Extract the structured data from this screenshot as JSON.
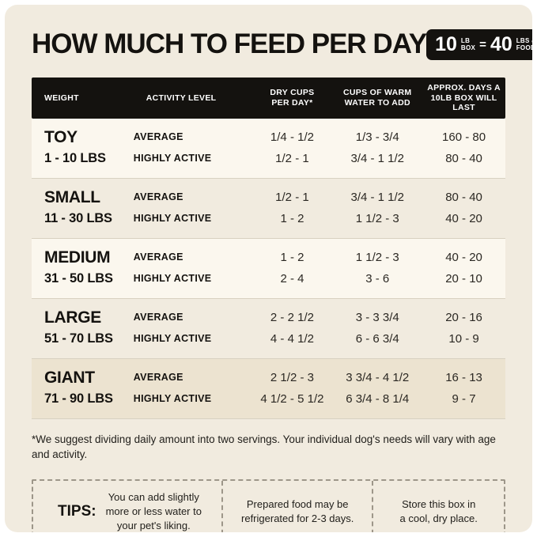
{
  "header": {
    "title": "HOW MUCH TO FEED PER DAY",
    "badge": {
      "num1": "10",
      "unit1_top": "LB",
      "unit1_bottom": "BOX",
      "equals": "=",
      "num2": "40",
      "unit2_top": "LBS",
      "unit2_of": "of",
      "unit2_bottom": "FOOD!"
    }
  },
  "table": {
    "headers": {
      "weight": "WEIGHT",
      "activity": "ACTIVITY LEVEL",
      "dry_cups": "DRY CUPS\nPER DAY*",
      "water": "CUPS OF WARM\nWATER TO ADD",
      "days": "APPROX. DAYS A\n10LB BOX WILL LAST"
    },
    "rows": [
      {
        "weight": "TOY",
        "range": "1 - 10 LBS",
        "lines": [
          {
            "activity": "AVERAGE",
            "dry": "1/4 - 1/2",
            "water": "1/3 - 3/4",
            "days": "160 - 80"
          },
          {
            "activity": "HIGHLY ACTIVE",
            "dry": "1/2 - 1",
            "water": "3/4 - 1 1/2",
            "days": "80 - 40"
          }
        ]
      },
      {
        "weight": "SMALL",
        "range": "11 - 30 LBS",
        "lines": [
          {
            "activity": "AVERAGE",
            "dry": "1/2 - 1",
            "water": "3/4 - 1 1/2",
            "days": "80 - 40"
          },
          {
            "activity": "HIGHLY ACTIVE",
            "dry": "1 - 2",
            "water": "1 1/2 - 3",
            "days": "40 - 20"
          }
        ]
      },
      {
        "weight": "MEDIUM",
        "range": "31 - 50 LBS",
        "lines": [
          {
            "activity": "AVERAGE",
            "dry": "1 - 2",
            "water": "1 1/2 - 3",
            "days": "40 - 20"
          },
          {
            "activity": "HIGHLY ACTIVE",
            "dry": "2 - 4",
            "water": "3 - 6",
            "days": "20 - 10"
          }
        ]
      },
      {
        "weight": "LARGE",
        "range": "51 - 70 LBS",
        "lines": [
          {
            "activity": "AVERAGE",
            "dry": "2 - 2 1/2",
            "water": "3 - 3 3/4",
            "days": "20 - 16"
          },
          {
            "activity": "HIGHLY ACTIVE",
            "dry": "4 - 4 1/2",
            "water": "6 - 6 3/4",
            "days": "10 - 9"
          }
        ]
      },
      {
        "weight": "GIANT",
        "range": "71 - 90 LBS",
        "lines": [
          {
            "activity": "AVERAGE",
            "dry": "2 1/2 - 3",
            "water": "3 3/4 - 4 1/2",
            "days": "16 - 13"
          },
          {
            "activity": "HIGHLY ACTIVE",
            "dry": "4 1/2 - 5 1/2",
            "water": "6 3/4 - 8 1/4",
            "days": "9 - 7"
          }
        ]
      }
    ]
  },
  "footnote": "*We suggest dividing daily amount into two servings. Your individual dog's needs will vary with age and activity.",
  "tips": {
    "label": "TIPS:",
    "items": [
      "You can add slightly\nmore or less water to\nyour pet's liking.",
      "Prepared food may be\nrefrigerated for 2-3 days.",
      "Store this box in\na cool, dry place."
    ]
  }
}
